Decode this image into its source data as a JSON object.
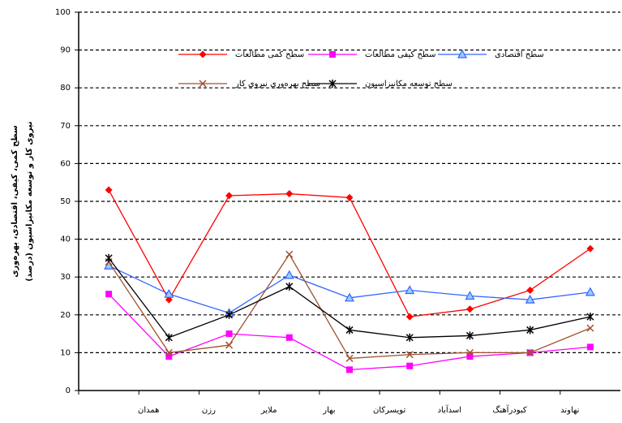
{
  "chart_data": {
    "type": "line",
    "y_label": [
      "سطح کمی، کیفی، اقتصادی، بهره‌وری",
      "نیروی کار و توسعه مکانیزاسیون (درصد)"
    ],
    "categories": [
      null,
      "همدان",
      "رزن",
      "ملایر",
      "بهار",
      "تویسرکان",
      "اسدآباد",
      "کبودرآهنگ",
      "نهاوند"
    ],
    "series": [
      {
        "name": "سطح کمی مطالعات",
        "color": "#ff0000",
        "marker": "diamond",
        "values": [
          53,
          24,
          51.5,
          52,
          51,
          19.5,
          21.5,
          26.5,
          37.5
        ]
      },
      {
        "name": "سطح کیفی مطالعات",
        "color": "#ff00ff",
        "marker": "square",
        "values": [
          25.5,
          9,
          15,
          14,
          5.5,
          6.5,
          9,
          10,
          11.5
        ]
      },
      {
        "name": "سطح اقتصادی",
        "color": "#3366ff",
        "marker": "triangle",
        "values": [
          33,
          25.5,
          20.5,
          30.5,
          24.5,
          26.5,
          25,
          24,
          26
        ]
      },
      {
        "name": "سطح بهره‌وری نیروی کار",
        "color": "#a0522d",
        "marker": "x",
        "values": [
          34,
          10,
          12,
          36,
          8.5,
          9.5,
          10,
          10,
          16.5
        ]
      },
      {
        "name": "سطح توسعه مکانیزاسیون",
        "color": "#000000",
        "marker": "star",
        "values": [
          35,
          14,
          20,
          27.5,
          16,
          14,
          14.5,
          16,
          19.5
        ]
      }
    ],
    "ylim": [
      0,
      100
    ],
    "yticks": [
      0,
      10,
      20,
      30,
      40,
      50,
      60,
      70,
      80,
      90,
      100
    ],
    "grid": true
  }
}
